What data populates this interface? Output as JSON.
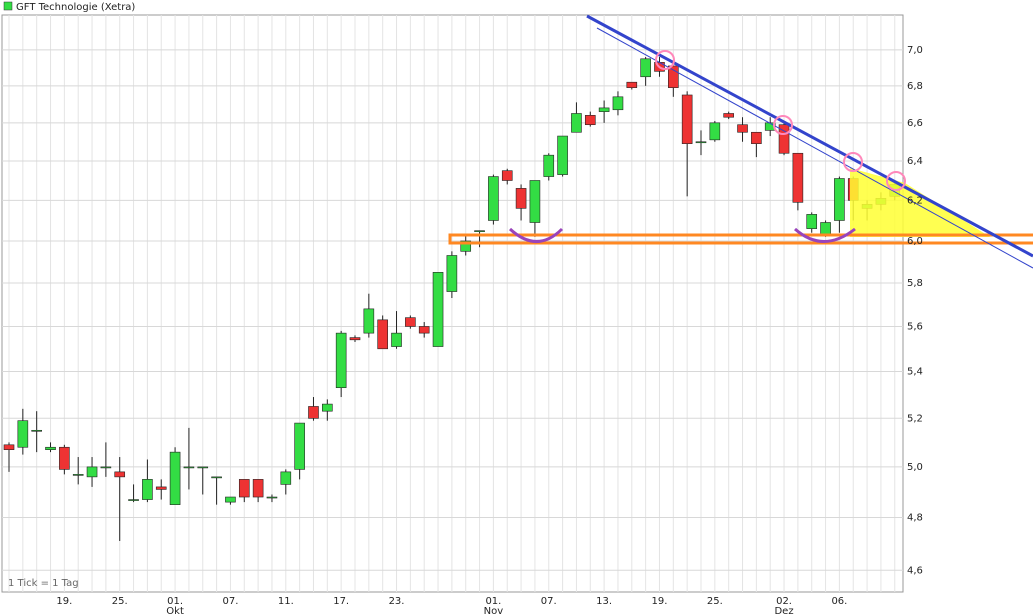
{
  "chart_data": {
    "type": "candlestick",
    "title": "GFT Technologie (Xetra)",
    "note": "1 Tick = 1 Tag",
    "up_color": "#33dd44",
    "down_color": "#ee3333",
    "log_scale": true,
    "grid": true,
    "categories": [
      null,
      null,
      null,
      null,
      "19.",
      null,
      null,
      null,
      "25.",
      null,
      null,
      null,
      "01.",
      null,
      null,
      null,
      "07.",
      null,
      null,
      null,
      "11.",
      null,
      null,
      null,
      "17.",
      null,
      null,
      null,
      "23.",
      null,
      null,
      null,
      null,
      null,
      null,
      "01.",
      null,
      null,
      null,
      "07.",
      null,
      null,
      null,
      "13.",
      null,
      null,
      null,
      "19.",
      null,
      null,
      null,
      "25.",
      null,
      null,
      null,
      null,
      "02.",
      null,
      null,
      null,
      "06.",
      null,
      null,
      null,
      null
    ],
    "months": [
      null,
      null,
      null,
      null,
      null,
      null,
      null,
      null,
      null,
      null,
      null,
      null,
      "Okt",
      null,
      null,
      null,
      null,
      null,
      null,
      null,
      null,
      null,
      null,
      null,
      null,
      null,
      null,
      null,
      null,
      null,
      null,
      null,
      null,
      null,
      null,
      "Nov",
      null,
      null,
      null,
      null,
      null,
      null,
      null,
      null,
      null,
      null,
      null,
      null,
      null,
      null,
      null,
      null,
      null,
      null,
      null,
      null,
      "Dez",
      null,
      null,
      null,
      null,
      null,
      null,
      null,
      null
    ],
    "open": [
      5.09,
      5.08,
      5.15,
      5.07,
      5.08,
      4.97,
      4.96,
      5.0,
      4.98,
      4.87,
      4.87,
      4.92,
      4.85,
      5.0,
      5.0,
      4.96,
      4.86,
      4.95,
      4.95,
      4.88,
      4.93,
      4.99,
      5.25,
      5.23,
      5.33,
      5.55,
      5.57,
      5.63,
      5.51,
      5.64,
      5.6,
      5.51,
      5.76,
      5.95,
      6.05,
      6.1,
      6.35,
      6.26,
      6.09,
      6.32,
      6.33,
      6.55,
      6.64,
      6.66,
      6.67,
      6.82,
      6.85,
      6.93,
      6.91,
      6.75,
      6.5,
      6.51,
      6.65,
      6.59,
      6.55,
      6.56,
      6.59,
      6.44,
      6.06,
      6.03,
      6.1,
      6.31,
      6.16,
      6.18,
      6.22
    ],
    "high": [
      5.1,
      5.24,
      5.23,
      5.1,
      5.09,
      5.04,
      5.04,
      5.1,
      5.04,
      4.93,
      5.03,
      4.95,
      5.08,
      5.16,
      5.0,
      4.96,
      4.88,
      4.95,
      4.95,
      4.89,
      4.99,
      5.18,
      5.29,
      5.28,
      5.58,
      5.56,
      5.75,
      5.65,
      5.67,
      5.65,
      5.62,
      5.85,
      5.95,
      6.03,
      6.05,
      6.33,
      6.36,
      6.28,
      6.3,
      6.44,
      6.53,
      6.71,
      6.66,
      6.72,
      6.77,
      6.82,
      6.96,
      6.96,
      6.91,
      6.77,
      6.56,
      6.61,
      6.66,
      6.63,
      6.55,
      6.63,
      6.6,
      6.44,
      6.14,
      6.1,
      6.32,
      6.32,
      6.2,
      6.24,
      6.3
    ],
    "low": [
      4.98,
      5.05,
      5.06,
      5.06,
      4.97,
      4.93,
      4.92,
      4.96,
      4.71,
      4.86,
      4.86,
      4.87,
      4.85,
      4.91,
      4.89,
      4.85,
      4.85,
      4.86,
      4.86,
      4.86,
      4.89,
      4.95,
      5.19,
      5.19,
      5.29,
      5.53,
      5.55,
      5.5,
      5.5,
      5.59,
      5.55,
      5.51,
      5.73,
      5.93,
      5.97,
      6.08,
      6.28,
      6.1,
      6.02,
      6.3,
      6.32,
      6.55,
      6.58,
      6.6,
      6.64,
      6.78,
      6.8,
      6.85,
      6.74,
      6.22,
      6.43,
      6.5,
      6.62,
      6.5,
      6.42,
      6.53,
      6.43,
      6.15,
      6.04,
      6.02,
      6.04,
      6.1,
      6.1,
      6.15,
      6.2
    ],
    "close": [
      5.07,
      5.19,
      5.15,
      5.08,
      4.99,
      4.97,
      5.0,
      5.0,
      4.96,
      4.87,
      4.95,
      4.91,
      5.06,
      5.0,
      5.0,
      4.96,
      4.88,
      4.88,
      4.88,
      4.88,
      4.98,
      5.18,
      5.2,
      5.26,
      5.57,
      5.54,
      5.68,
      5.5,
      5.57,
      5.6,
      5.57,
      5.85,
      5.93,
      6.0,
      6.05,
      6.32,
      6.3,
      6.16,
      6.3,
      6.43,
      6.53,
      6.65,
      6.59,
      6.68,
      6.74,
      6.79,
      6.95,
      6.88,
      6.79,
      6.49,
      6.5,
      6.6,
      6.63,
      6.55,
      6.49,
      6.6,
      6.44,
      6.19,
      6.13,
      6.09,
      6.31,
      6.2,
      6.18,
      6.21,
      6.28
    ],
    "ylim": [
      4.52,
      7.2
    ],
    "yticks": [
      {
        "value": 4.6,
        "label": "4,6"
      },
      {
        "value": 4.8,
        "label": "4,8"
      },
      {
        "value": 5.0,
        "label": "5,0"
      },
      {
        "value": 5.2,
        "label": "5,2"
      },
      {
        "value": 5.4,
        "label": "5,4"
      },
      {
        "value": 5.6,
        "label": "5,6"
      },
      {
        "value": 5.8,
        "label": "5,8"
      },
      {
        "value": 6.0,
        "label": "6,0"
      },
      {
        "value": 6.2,
        "label": "6,2"
      },
      {
        "value": 6.4,
        "label": "6,4"
      },
      {
        "value": 6.6,
        "label": "6,6"
      },
      {
        "value": 6.8,
        "label": "6,8"
      },
      {
        "value": 7.0,
        "label": "7,0"
      }
    ]
  }
}
